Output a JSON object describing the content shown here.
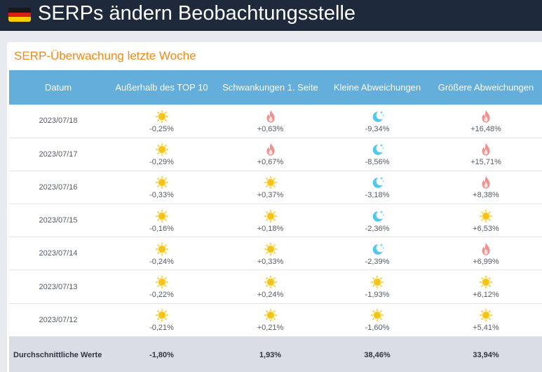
{
  "page": {
    "title": "SERPs ändern Beobachtungsstelle",
    "flag_icon": "germany-flag-icon"
  },
  "card": {
    "title": "SERP-Überwachung letzte Woche"
  },
  "table": {
    "columns": [
      "Datum",
      "Außerhalb des TOP 10",
      "Schwankungen 1. Seite",
      "Kleine Abweichungen",
      "Größere Abweichungen"
    ],
    "rows": [
      {
        "date": "2023/07/18",
        "cells": [
          {
            "icon": "sun-icon",
            "value": "-0,25%"
          },
          {
            "icon": "fire-icon",
            "value": "+0,63%"
          },
          {
            "icon": "moon-icon",
            "value": "-9,34%"
          },
          {
            "icon": "fire-icon",
            "value": "+16,48%"
          }
        ]
      },
      {
        "date": "2023/07/17",
        "cells": [
          {
            "icon": "sun-icon",
            "value": "-0,29%"
          },
          {
            "icon": "fire-icon",
            "value": "+0,67%"
          },
          {
            "icon": "moon-icon",
            "value": "-8,56%"
          },
          {
            "icon": "fire-icon",
            "value": "+15,71%"
          }
        ]
      },
      {
        "date": "2023/07/16",
        "cells": [
          {
            "icon": "sun-icon",
            "value": "-0,33%"
          },
          {
            "icon": "sun-icon",
            "value": "+0,37%"
          },
          {
            "icon": "moon-icon",
            "value": "-3,18%"
          },
          {
            "icon": "fire-icon",
            "value": "+8,38%"
          }
        ]
      },
      {
        "date": "2023/07/15",
        "cells": [
          {
            "icon": "sun-icon",
            "value": "-0,16%"
          },
          {
            "icon": "sun-icon",
            "value": "+0,18%"
          },
          {
            "icon": "moon-icon",
            "value": "-2,36%"
          },
          {
            "icon": "sun-icon",
            "value": "+6,53%"
          }
        ]
      },
      {
        "date": "2023/07/14",
        "cells": [
          {
            "icon": "sun-icon",
            "value": "-0,24%"
          },
          {
            "icon": "sun-icon",
            "value": "+0,33%"
          },
          {
            "icon": "moon-icon",
            "value": "-2,39%"
          },
          {
            "icon": "fire-icon",
            "value": "+6,99%"
          }
        ]
      },
      {
        "date": "2023/07/13",
        "cells": [
          {
            "icon": "sun-icon",
            "value": "-0,22%"
          },
          {
            "icon": "sun-icon",
            "value": "+0,24%"
          },
          {
            "icon": "sun-icon",
            "value": "-1,93%"
          },
          {
            "icon": "sun-icon",
            "value": "+6,12%"
          }
        ]
      },
      {
        "date": "2023/07/12",
        "cells": [
          {
            "icon": "sun-icon",
            "value": "-0,21%"
          },
          {
            "icon": "sun-icon",
            "value": "+0,21%"
          },
          {
            "icon": "sun-icon",
            "value": "-1,60%"
          },
          {
            "icon": "sun-icon",
            "value": "+5,41%"
          }
        ]
      }
    ],
    "average": {
      "label": "Durchschnittliche Werte",
      "values": [
        "-1,80%",
        "1,93%",
        "38,46%",
        "33,94%"
      ]
    }
  },
  "colors": {
    "header_bg": "#1e2a3b",
    "table_header_bg": "#64aedc",
    "card_title": "#f08a1c",
    "average_bg": "#d9dde6"
  }
}
